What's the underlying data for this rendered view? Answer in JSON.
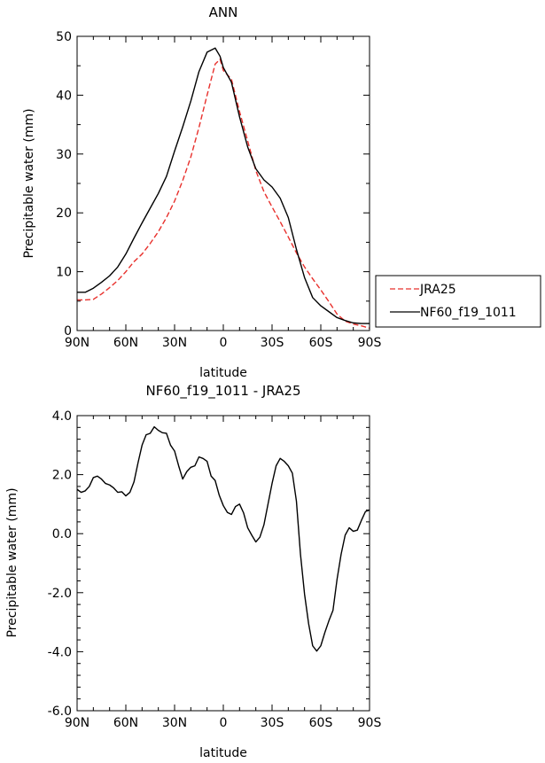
{
  "chart_data": [
    {
      "type": "line",
      "title": "ANN",
      "xlabel": "latitude",
      "ylabel": "Precipitable water (mm)",
      "xlim": [
        90,
        -90
      ],
      "ylim": [
        0,
        50
      ],
      "xticks": [
        90,
        60,
        30,
        0,
        -30,
        -60,
        -90
      ],
      "xtick_labels": [
        "90N",
        "60N",
        "30N",
        "0",
        "30S",
        "60S",
        "90S"
      ],
      "yticks": [
        0,
        10,
        20,
        30,
        40,
        50
      ],
      "ytick_labels": [
        "0",
        "10",
        "20",
        "30",
        "40",
        "50"
      ],
      "legend_position": "right",
      "series": [
        {
          "name": "JRA25",
          "color": "#e8302c",
          "dash": true,
          "x": [
            90,
            85,
            80,
            75,
            70,
            65,
            60,
            55,
            50,
            45,
            40,
            35,
            30,
            25,
            20,
            15,
            10,
            5,
            2,
            0,
            -5,
            -10,
            -15,
            -20,
            -25,
            -30,
            -35,
            -40,
            -45,
            -50,
            -55,
            -60,
            -65,
            -70,
            -75,
            -80,
            -85,
            -90
          ],
          "values": [
            5.2,
            5.2,
            5.3,
            6.2,
            7.3,
            8.5,
            10,
            11.7,
            13,
            14.8,
            16.8,
            19.2,
            22,
            25.5,
            29.5,
            34.5,
            40,
            45.3,
            46.1,
            44.2,
            42.7,
            37.2,
            32.2,
            27.2,
            23.6,
            21,
            18.5,
            15.9,
            13.2,
            10.8,
            8.8,
            6.9,
            4.9,
            2.8,
            1.6,
            1.1,
            0.8,
            0.4
          ]
        },
        {
          "name": "NF60_f19_1011",
          "color": "#000000",
          "dash": false,
          "x": [
            90,
            85,
            80,
            75,
            70,
            65,
            60,
            55,
            50,
            45,
            40,
            35,
            30,
            25,
            20,
            15,
            10,
            5,
            2,
            0,
            -5,
            -10,
            -15,
            -20,
            -25,
            -30,
            -35,
            -40,
            -45,
            -50,
            -55,
            -60,
            -65,
            -70,
            -75,
            -80,
            -85,
            -90
          ],
          "values": [
            6.5,
            6.5,
            7.2,
            8.2,
            9.3,
            10.8,
            13,
            15.7,
            18.3,
            20.8,
            23.3,
            26.2,
            30.5,
            34.6,
            39,
            44,
            47.3,
            48,
            46.6,
            44.7,
            42.2,
            36.3,
            31.2,
            27.5,
            25.6,
            24.4,
            22.5,
            19.2,
            13.8,
            9,
            5.6,
            4.2,
            3.2,
            2.2,
            1.7,
            1.3,
            1.2,
            1.2
          ]
        }
      ]
    },
    {
      "type": "line",
      "title": "NF60_f19_1011 - JRA25",
      "xlabel": "latitude",
      "ylabel": "Precipitable water (mm)",
      "xlim": [
        90,
        -90
      ],
      "ylim": [
        -6,
        4
      ],
      "xticks": [
        90,
        60,
        30,
        0,
        -30,
        -60,
        -90
      ],
      "xtick_labels": [
        "90N",
        "60N",
        "30N",
        "0",
        "30S",
        "60S",
        "90S"
      ],
      "yticks": [
        4,
        2,
        0,
        -2,
        -4,
        -6
      ],
      "ytick_labels": [
        "4.0",
        "2.0",
        "0.0",
        "-2.0",
        "-4.0",
        "-6.0"
      ],
      "series": [
        {
          "name": "NF60_f19_1011 - JRA25",
          "color": "#000000",
          "dash": false,
          "x": [
            90,
            87.5,
            85,
            82.5,
            80,
            77.5,
            75,
            72.5,
            70,
            67.5,
            65,
            62.5,
            60,
            57.5,
            55,
            52.5,
            50,
            47.5,
            45,
            42.5,
            40,
            37.5,
            35,
            32.5,
            30,
            27.5,
            25,
            22.5,
            20,
            17.5,
            15,
            12.5,
            10,
            7.5,
            5,
            2.5,
            0,
            -2.5,
            -5,
            -7.5,
            -10,
            -12.5,
            -15,
            -17.5,
            -20,
            -22.5,
            -25,
            -27.5,
            -30,
            -32.5,
            -35,
            -37.5,
            -40,
            -42.5,
            -45,
            -47.5,
            -50,
            -52.5,
            -55,
            -57.5,
            -60,
            -62.5,
            -65,
            -67.5,
            -70,
            -72.5,
            -75,
            -77.5,
            -80,
            -82.5,
            -85,
            -87.5,
            -90
          ],
          "values": [
            1.5,
            1.4,
            1.45,
            1.6,
            1.9,
            1.95,
            1.85,
            1.7,
            1.65,
            1.55,
            1.4,
            1.42,
            1.28,
            1.4,
            1.75,
            2.4,
            3.0,
            3.35,
            3.4,
            3.62,
            3.5,
            3.42,
            3.4,
            3.0,
            2.8,
            2.3,
            1.85,
            2.1,
            2.25,
            2.3,
            2.6,
            2.55,
            2.45,
            1.95,
            1.8,
            1.3,
            0.95,
            0.72,
            0.65,
            0.92,
            1.0,
            0.7,
            0.2,
            -0.05,
            -0.28,
            -0.12,
            0.3,
            1.0,
            1.7,
            2.3,
            2.55,
            2.45,
            2.3,
            2.05,
            1.1,
            -0.7,
            -2.05,
            -3.05,
            -3.8,
            -3.98,
            -3.8,
            -3.35,
            -2.95,
            -2.6,
            -1.55,
            -0.7,
            -0.05,
            0.2,
            0.08,
            0.12,
            0.45,
            0.75,
            0.8
          ]
        }
      ]
    }
  ]
}
